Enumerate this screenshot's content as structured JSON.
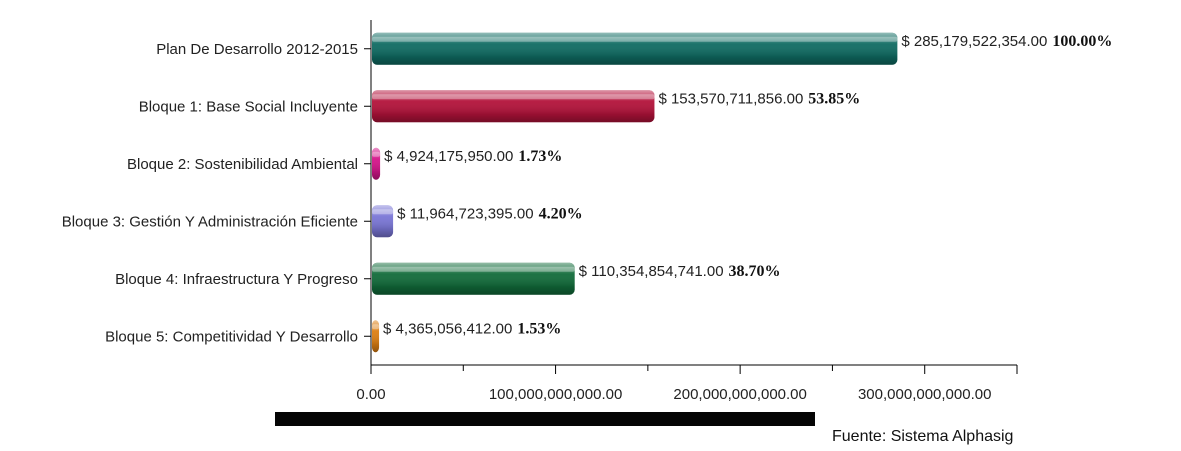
{
  "chart_data": {
    "type": "bar",
    "orientation": "horizontal",
    "categories": [
      "Plan De Desarrollo 2012-2015",
      "Bloque 1: Base Social Incluyente",
      "Bloque 2: Sostenibilidad Ambiental",
      "Bloque 3: Gestión Y Administración Eficiente",
      "Bloque 4: Infraestructura Y Progreso",
      "Bloque 5: Competitividad Y Desarrollo"
    ],
    "values": [
      285179522354.0,
      153570711856.0,
      4924175950.0,
      11964723395.0,
      110354854741.0,
      4365056412.0
    ],
    "value_labels": [
      "$ 285,179,522,354.00",
      "$ 153,570,711,856.00",
      "$ 4,924,175,950.00",
      "$ 11,964,723,395.00",
      "$ 110,354,854,741.00",
      "$ 4,365,056,412.00"
    ],
    "percent_labels": [
      "100.00%",
      "53.85%",
      "1.73%",
      "4.20%",
      "38.70%",
      "1.53%"
    ],
    "colors": [
      "#0f6b62",
      "#b3123a",
      "#d4148a",
      "#7a76d6",
      "#116b3a",
      "#dd7f12"
    ],
    "xlim": [
      0,
      350000000000
    ],
    "x_ticks": [
      0,
      100000000000,
      200000000000,
      300000000000
    ],
    "x_tick_labels": [
      "0.00",
      "100,000,000,000.00",
      "200,000,000,000.00",
      "300,000,000,000.00"
    ],
    "title": "",
    "xlabel": "",
    "ylabel": "",
    "grid": false,
    "legend": "none"
  },
  "source_text": "Fuente: Sistema Alphasig"
}
